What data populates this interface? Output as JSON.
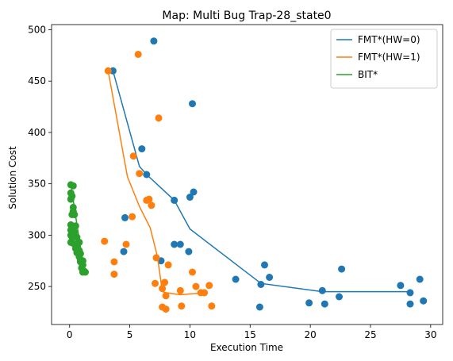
{
  "chart_data": {
    "type": "scatter",
    "title": "Map: Multi Bug Trap-28_state0",
    "xlabel": "Execution Time",
    "ylabel": "Solution Cost",
    "xlim": [
      -1.5,
      31.0
    ],
    "ylim": [
      213,
      505
    ],
    "xticks": [
      "0",
      "5",
      "10",
      "15",
      "20",
      "25",
      "30"
    ],
    "xtick_values": [
      0,
      5,
      10,
      15,
      20,
      25,
      30
    ],
    "yticks": [
      "250",
      "300",
      "350",
      "400",
      "450",
      "500"
    ],
    "ytick_values": [
      250,
      300,
      350,
      400,
      450,
      500
    ],
    "grid": false,
    "legend_position": "top-right",
    "series": [
      {
        "name": "FMT*(HW=0)",
        "color": "#1f77b4",
        "line": [
          [
            3.6,
            460
          ],
          [
            5.8,
            367
          ],
          [
            6.4,
            359
          ],
          [
            8.7,
            334
          ],
          [
            10.0,
            306
          ],
          [
            15.9,
            253
          ],
          [
            21.0,
            245
          ],
          [
            28.3,
            245
          ]
        ],
        "points": [
          [
            7.0,
            489
          ],
          [
            3.6,
            460
          ],
          [
            10.2,
            428
          ],
          [
            6.0,
            384
          ],
          [
            6.4,
            359
          ],
          [
            8.7,
            334
          ],
          [
            10.0,
            337
          ],
          [
            10.3,
            342
          ],
          [
            4.6,
            317
          ],
          [
            8.7,
            291
          ],
          [
            9.2,
            291
          ],
          [
            4.5,
            284
          ],
          [
            9.9,
            284
          ],
          [
            7.6,
            275
          ],
          [
            16.2,
            271
          ],
          [
            22.6,
            267
          ],
          [
            16.6,
            259
          ],
          [
            13.8,
            257
          ],
          [
            15.9,
            252
          ],
          [
            27.5,
            251
          ],
          [
            29.1,
            257
          ],
          [
            21.0,
            246
          ],
          [
            28.3,
            244
          ],
          [
            22.4,
            240
          ],
          [
            19.9,
            234
          ],
          [
            21.2,
            233
          ],
          [
            28.3,
            233
          ],
          [
            29.4,
            236
          ],
          [
            15.8,
            230
          ]
        ]
      },
      {
        "name": "FMT*(HW=1)",
        "color": "#ff7f0e",
        "line": [
          [
            3.2,
            460
          ],
          [
            4.8,
            357
          ],
          [
            5.8,
            328
          ],
          [
            6.7,
            307
          ],
          [
            7.3,
            279
          ],
          [
            7.7,
            245
          ],
          [
            8.0,
            244
          ],
          [
            9.2,
            242
          ],
          [
            11.3,
            244
          ]
        ],
        "points": [
          [
            5.7,
            476
          ],
          [
            3.2,
            460
          ],
          [
            7.4,
            414
          ],
          [
            5.3,
            377
          ],
          [
            5.8,
            360
          ],
          [
            6.6,
            335
          ],
          [
            6.4,
            334
          ],
          [
            6.8,
            329
          ],
          [
            5.2,
            318
          ],
          [
            2.9,
            294
          ],
          [
            4.7,
            291
          ],
          [
            7.2,
            278
          ],
          [
            3.7,
            274
          ],
          [
            8.2,
            271
          ],
          [
            10.2,
            264
          ],
          [
            3.7,
            262
          ],
          [
            7.1,
            253
          ],
          [
            7.9,
            254
          ],
          [
            11.6,
            251
          ],
          [
            10.5,
            250
          ],
          [
            7.7,
            248
          ],
          [
            9.2,
            246
          ],
          [
            11.2,
            244
          ],
          [
            10.9,
            244
          ],
          [
            8.0,
            241
          ],
          [
            7.7,
            230
          ],
          [
            8.0,
            228
          ],
          [
            9.3,
            231
          ],
          [
            11.8,
            231
          ]
        ]
      },
      {
        "name": "BIT*",
        "color": "#2ca02c",
        "line": [
          [
            0.1,
            349
          ],
          [
            1.2,
            265
          ]
        ],
        "points": [
          [
            0.1,
            349
          ],
          [
            0.3,
            348
          ],
          [
            0.1,
            341
          ],
          [
            0.2,
            338
          ],
          [
            0.1,
            335
          ],
          [
            0.3,
            327
          ],
          [
            0.3,
            323
          ],
          [
            0.2,
            320
          ],
          [
            0.4,
            320
          ],
          [
            0.1,
            310
          ],
          [
            0.5,
            309
          ],
          [
            0.2,
            307
          ],
          [
            0.1,
            305
          ],
          [
            0.4,
            303
          ],
          [
            0.1,
            300
          ],
          [
            0.2,
            298
          ],
          [
            0.6,
            298
          ],
          [
            0.1,
            293
          ],
          [
            0.3,
            292
          ],
          [
            0.7,
            292
          ],
          [
            0.8,
            293
          ],
          [
            0.5,
            287
          ],
          [
            0.7,
            286
          ],
          [
            0.8,
            285
          ],
          [
            0.6,
            283
          ],
          [
            0.9,
            282
          ],
          [
            0.8,
            279
          ],
          [
            0.9,
            276
          ],
          [
            1.1,
            275
          ],
          [
            0.9,
            274
          ],
          [
            1.0,
            273
          ],
          [
            1.1,
            271
          ],
          [
            1.0,
            268
          ],
          [
            1.2,
            265
          ],
          [
            1.1,
            264
          ],
          [
            1.3,
            264
          ]
        ]
      }
    ]
  }
}
